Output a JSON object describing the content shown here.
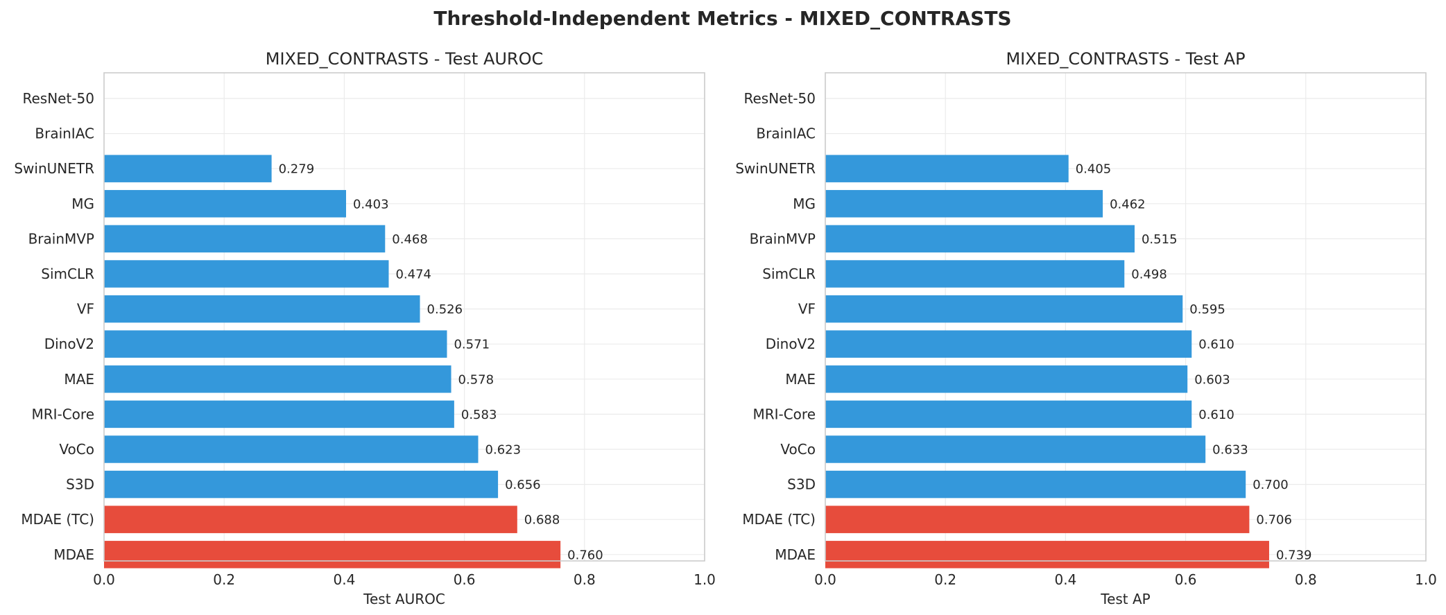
{
  "figure": {
    "suptitle": "Threshold-Independent Metrics - MIXED_CONTRASTS"
  },
  "colors": {
    "baseline": "#3498db",
    "highlight": "#e74c3c"
  },
  "chart_data": [
    {
      "type": "bar",
      "orientation": "horizontal",
      "title": "MIXED_CONTRASTS - Test AUROC",
      "xlabel": "Test AUROC",
      "ylabel": "",
      "xlim": [
        0,
        1
      ],
      "xticks": [
        "0.0",
        "0.2",
        "0.4",
        "0.6",
        "0.8",
        "1.0"
      ],
      "grid": true,
      "categories": [
        "ResNet-50",
        "BrainIAC",
        "SwinUNETR",
        "MG",
        "BrainMVP",
        "SimCLR",
        "VF",
        "DinoV2",
        "MAE",
        "MRI-Core",
        "VoCo",
        "S3D",
        "MDAE (TC)",
        "MDAE"
      ],
      "values": [
        0,
        0,
        0.279,
        0.403,
        0.468,
        0.474,
        0.526,
        0.571,
        0.578,
        0.583,
        0.623,
        0.656,
        0.688,
        0.76
      ],
      "value_labels": [
        "",
        "",
        "0.279",
        "0.403",
        "0.468",
        "0.474",
        "0.526",
        "0.571",
        "0.578",
        "0.583",
        "0.623",
        "0.656",
        "0.688",
        "0.760"
      ],
      "highlighted": [
        "MDAE (TC)",
        "MDAE"
      ]
    },
    {
      "type": "bar",
      "orientation": "horizontal",
      "title": "MIXED_CONTRASTS - Test AP",
      "xlabel": "Test AP",
      "ylabel": "",
      "xlim": [
        0,
        1
      ],
      "xticks": [
        "0.0",
        "0.2",
        "0.4",
        "0.6",
        "0.8",
        "1.0"
      ],
      "grid": true,
      "categories": [
        "ResNet-50",
        "BrainIAC",
        "SwinUNETR",
        "MG",
        "BrainMVP",
        "SimCLR",
        "VF",
        "DinoV2",
        "MAE",
        "MRI-Core",
        "VoCo",
        "S3D",
        "MDAE (TC)",
        "MDAE"
      ],
      "values": [
        0,
        0,
        0.405,
        0.462,
        0.515,
        0.498,
        0.595,
        0.61,
        0.603,
        0.61,
        0.633,
        0.7,
        0.706,
        0.739
      ],
      "value_labels": [
        "",
        "",
        "0.405",
        "0.462",
        "0.515",
        "0.498",
        "0.595",
        "0.610",
        "0.603",
        "0.610",
        "0.633",
        "0.700",
        "0.706",
        "0.739"
      ],
      "highlighted": [
        "MDAE (TC)",
        "MDAE"
      ]
    }
  ]
}
